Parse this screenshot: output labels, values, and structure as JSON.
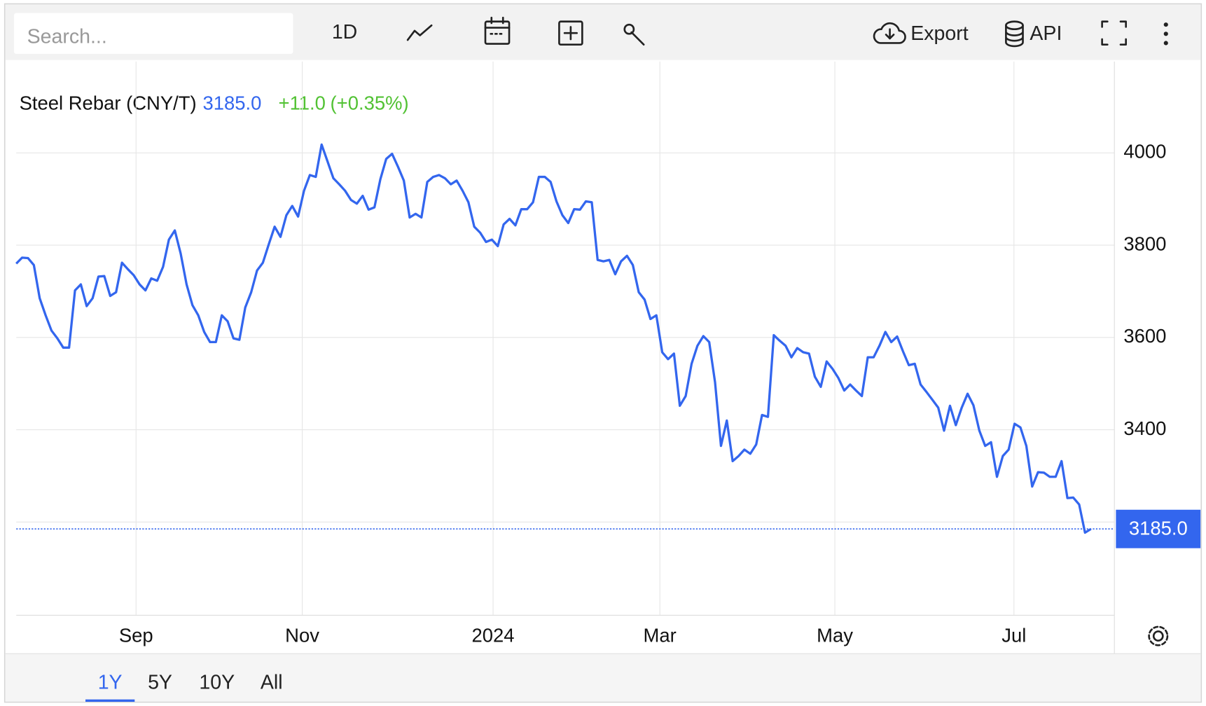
{
  "toolbar": {
    "search_placeholder": "Search...",
    "interval": "1D",
    "export": "Export",
    "api": "API"
  },
  "chart_data": {
    "type": "line",
    "header": {
      "name": "Steel Rebar (CNY/T)",
      "change": "+11.0",
      "change_pct": "(+0.35%)"
    },
    "last_value": {
      "value": 3185,
      "label": "3185.0"
    },
    "series": [
      {
        "name": "Steel Rebar (CNY/T)",
        "color": "#3366ee",
        "values": [
          3760,
          3773,
          3772,
          3757,
          3685,
          3648,
          3615,
          3598,
          3578,
          3578,
          3702,
          3715,
          3668,
          3685,
          3732,
          3733,
          3690,
          3698,
          3762,
          3748,
          3735,
          3715,
          3702,
          3728,
          3723,
          3753,
          3812,
          3832,
          3782,
          3715,
          3670,
          3648,
          3612,
          3590,
          3590,
          3648,
          3635,
          3598,
          3595,
          3665,
          3698,
          3745,
          3762,
          3802,
          3840,
          3818,
          3865,
          3885,
          3862,
          3918,
          3952,
          3948,
          4018,
          3982,
          3945,
          3932,
          3918,
          3898,
          3890,
          3907,
          3877,
          3882,
          3943,
          3987,
          3998,
          3970,
          3940,
          3860,
          3868,
          3860,
          3937,
          3948,
          3952,
          3945,
          3932,
          3940,
          3918,
          3893,
          3840,
          3827,
          3807,
          3812,
          3798,
          3845,
          3857,
          3843,
          3878,
          3878,
          3893,
          3948,
          3948,
          3937,
          3895,
          3865,
          3848,
          3878,
          3877,
          3895,
          3893,
          3768,
          3765,
          3768,
          3737,
          3765,
          3777,
          3757,
          3698,
          3682,
          3640,
          3648,
          3568,
          3553,
          3565,
          3452,
          3473,
          3543,
          3582,
          3603,
          3590,
          3503,
          3365,
          3420,
          3332,
          3343,
          3357,
          3348,
          3368,
          3432,
          3428,
          3605,
          3593,
          3582,
          3557,
          3577,
          3568,
          3565,
          3515,
          3493,
          3548,
          3532,
          3512,
          3485,
          3498,
          3485,
          3473,
          3557,
          3557,
          3582,
          3612,
          3590,
          3602,
          3570,
          3540,
          3543,
          3498,
          3482,
          3465,
          3448,
          3398,
          3452,
          3410,
          3448,
          3478,
          3453,
          3398,
          3365,
          3373,
          3298,
          3343,
          3357,
          3413,
          3405,
          3365,
          3277,
          3308,
          3307,
          3298,
          3298,
          3332,
          3252,
          3253,
          3238,
          3177,
          3185
        ]
      }
    ],
    "xlim": [
      0,
      187
    ],
    "xticks": [
      {
        "value": 20.4,
        "label": "Sep"
      },
      {
        "value": 48.7,
        "label": "Nov"
      },
      {
        "value": 81.2,
        "label": "2024"
      },
      {
        "value": 109.6,
        "label": "Mar"
      },
      {
        "value": 139.4,
        "label": "May"
      },
      {
        "value": 169.9,
        "label": "Jul"
      }
    ],
    "ylim": [
      2998,
      4198
    ],
    "yticks": [
      3200,
      3400,
      3600,
      3800,
      4000
    ],
    "grid": true
  },
  "range_buttons": [
    "1Y",
    "5Y",
    "10Y",
    "All"
  ]
}
